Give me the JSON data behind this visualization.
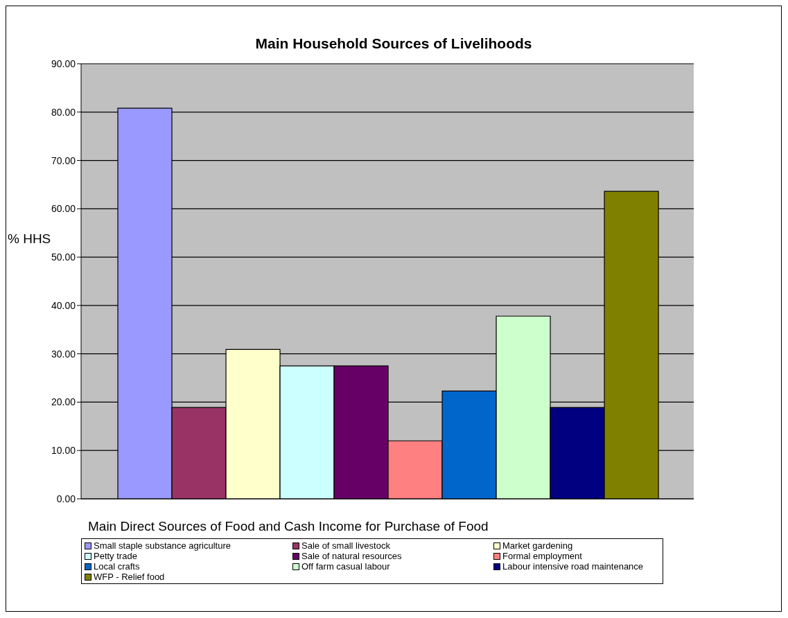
{
  "chart_data": {
    "type": "bar",
    "title": "Main Household Sources of Livelihoods",
    "xlabel": "Main Direct Sources of Food and Cash Income for Purchase of Food",
    "ylabel": "% HHS",
    "categories": [
      null
    ],
    "series": [
      {
        "name": "Small staple substance agriculture",
        "color": "#9999ff",
        "values": [
          80.8
        ]
      },
      {
        "name": "Sale of small livestock",
        "color": "#993366",
        "values": [
          18.9
        ]
      },
      {
        "name": "Market gardening",
        "color": "#ffffcc",
        "values": [
          30.9
        ]
      },
      {
        "name": "Petty trade",
        "color": "#ccffff",
        "values": [
          27.5
        ]
      },
      {
        "name": "Sale of natural resources",
        "color": "#660066",
        "values": [
          27.5
        ]
      },
      {
        "name": "Formal employment",
        "color": "#ff8080",
        "values": [
          12.0
        ]
      },
      {
        "name": "Local crafts",
        "color": "#0066cc",
        "values": [
          22.3
        ]
      },
      {
        "name": "Off farm casual labour",
        "color": "#ccffcc",
        "values": [
          37.8
        ]
      },
      {
        "name": "Labour intensive road maintenance",
        "color": "#000080",
        "values": [
          18.9
        ]
      },
      {
        "name": "WFP - Relief food",
        "color": "#808000",
        "values": [
          63.6
        ]
      }
    ],
    "ylim": [
      0,
      90
    ],
    "yticks": [
      {
        "value": 0,
        "label": "0.00"
      },
      {
        "value": 10,
        "label": "10.00"
      },
      {
        "value": 20,
        "label": "20.00"
      },
      {
        "value": 30,
        "label": "30.00"
      },
      {
        "value": 40,
        "label": "40.00"
      },
      {
        "value": 50,
        "label": "50.00"
      },
      {
        "value": 60,
        "label": "60.00"
      },
      {
        "value": 70,
        "label": "70.00"
      },
      {
        "value": 80,
        "label": "80.00"
      },
      {
        "value": 90,
        "label": "90.00"
      }
    ],
    "grid": "y",
    "legend": "bottom"
  }
}
